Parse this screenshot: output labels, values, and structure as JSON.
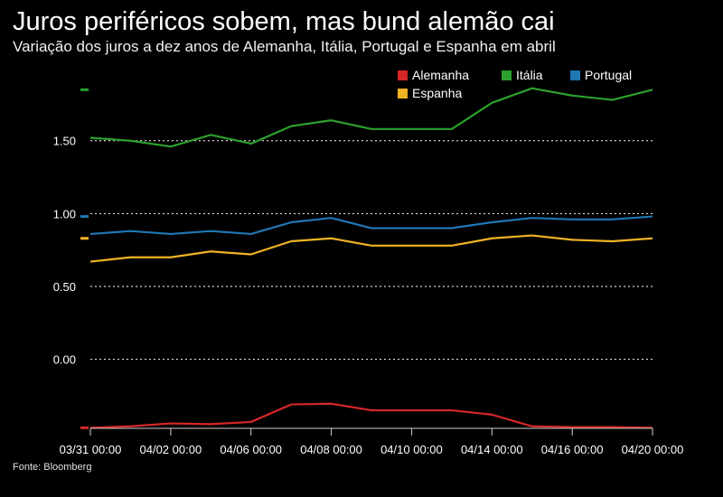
{
  "title": "Juros periféricos sobem, mas bund alemão cai",
  "subtitle": "Variação dos juros a dez anos de Alemanha, Itália, Portugal e Espanha em abril",
  "source": "Fonte: Bloomberg",
  "chart_data": {
    "type": "line",
    "x": [
      0,
      1,
      2,
      3,
      4,
      5,
      6,
      7,
      8,
      9,
      10,
      11,
      12,
      13,
      14
    ],
    "xticks": [
      "03/31 00:00",
      "04/02 00:00",
      "04/06 00:00",
      "04/08 00:00",
      "04/10 00:00",
      "04/14 00:00",
      "04/16 00:00",
      "04/20 00:00"
    ],
    "xtick_positions": [
      0,
      2,
      4,
      6,
      8,
      10,
      12,
      14
    ],
    "ylim": [
      -0.48,
      1.92
    ],
    "yticks": [
      "1.50",
      "1.00",
      "0.50",
      "0.00"
    ],
    "ytick_values": [
      1.5,
      1.0,
      0.5,
      0.0
    ],
    "series": [
      {
        "name": "Alemanha",
        "color": "#d62728",
        "values": [
          -0.47,
          -0.46,
          -0.44,
          -0.445,
          -0.43,
          -0.31,
          -0.305,
          -0.35,
          -0.35,
          -0.35,
          -0.38,
          -0.46,
          -0.465,
          -0.465,
          -0.47
        ]
      },
      {
        "name": "Itália",
        "color": "#2ca02c",
        "values": [
          1.52,
          1.5,
          1.46,
          1.54,
          1.48,
          1.6,
          1.64,
          1.58,
          1.58,
          1.58,
          1.76,
          1.86,
          1.81,
          1.78,
          1.85
        ]
      },
      {
        "name": "Portugal",
        "color": "#1f77b4",
        "values": [
          0.86,
          0.88,
          0.86,
          0.88,
          0.86,
          0.94,
          0.97,
          0.9,
          0.9,
          0.9,
          0.94,
          0.97,
          0.96,
          0.96,
          0.98
        ]
      },
      {
        "name": "Espanha",
        "color": "#f0b323",
        "values": [
          0.67,
          0.7,
          0.7,
          0.74,
          0.72,
          0.81,
          0.83,
          0.78,
          0.78,
          0.78,
          0.83,
          0.85,
          0.82,
          0.81,
          0.83
        ]
      }
    ],
    "grid": true,
    "legend": "top-right"
  }
}
